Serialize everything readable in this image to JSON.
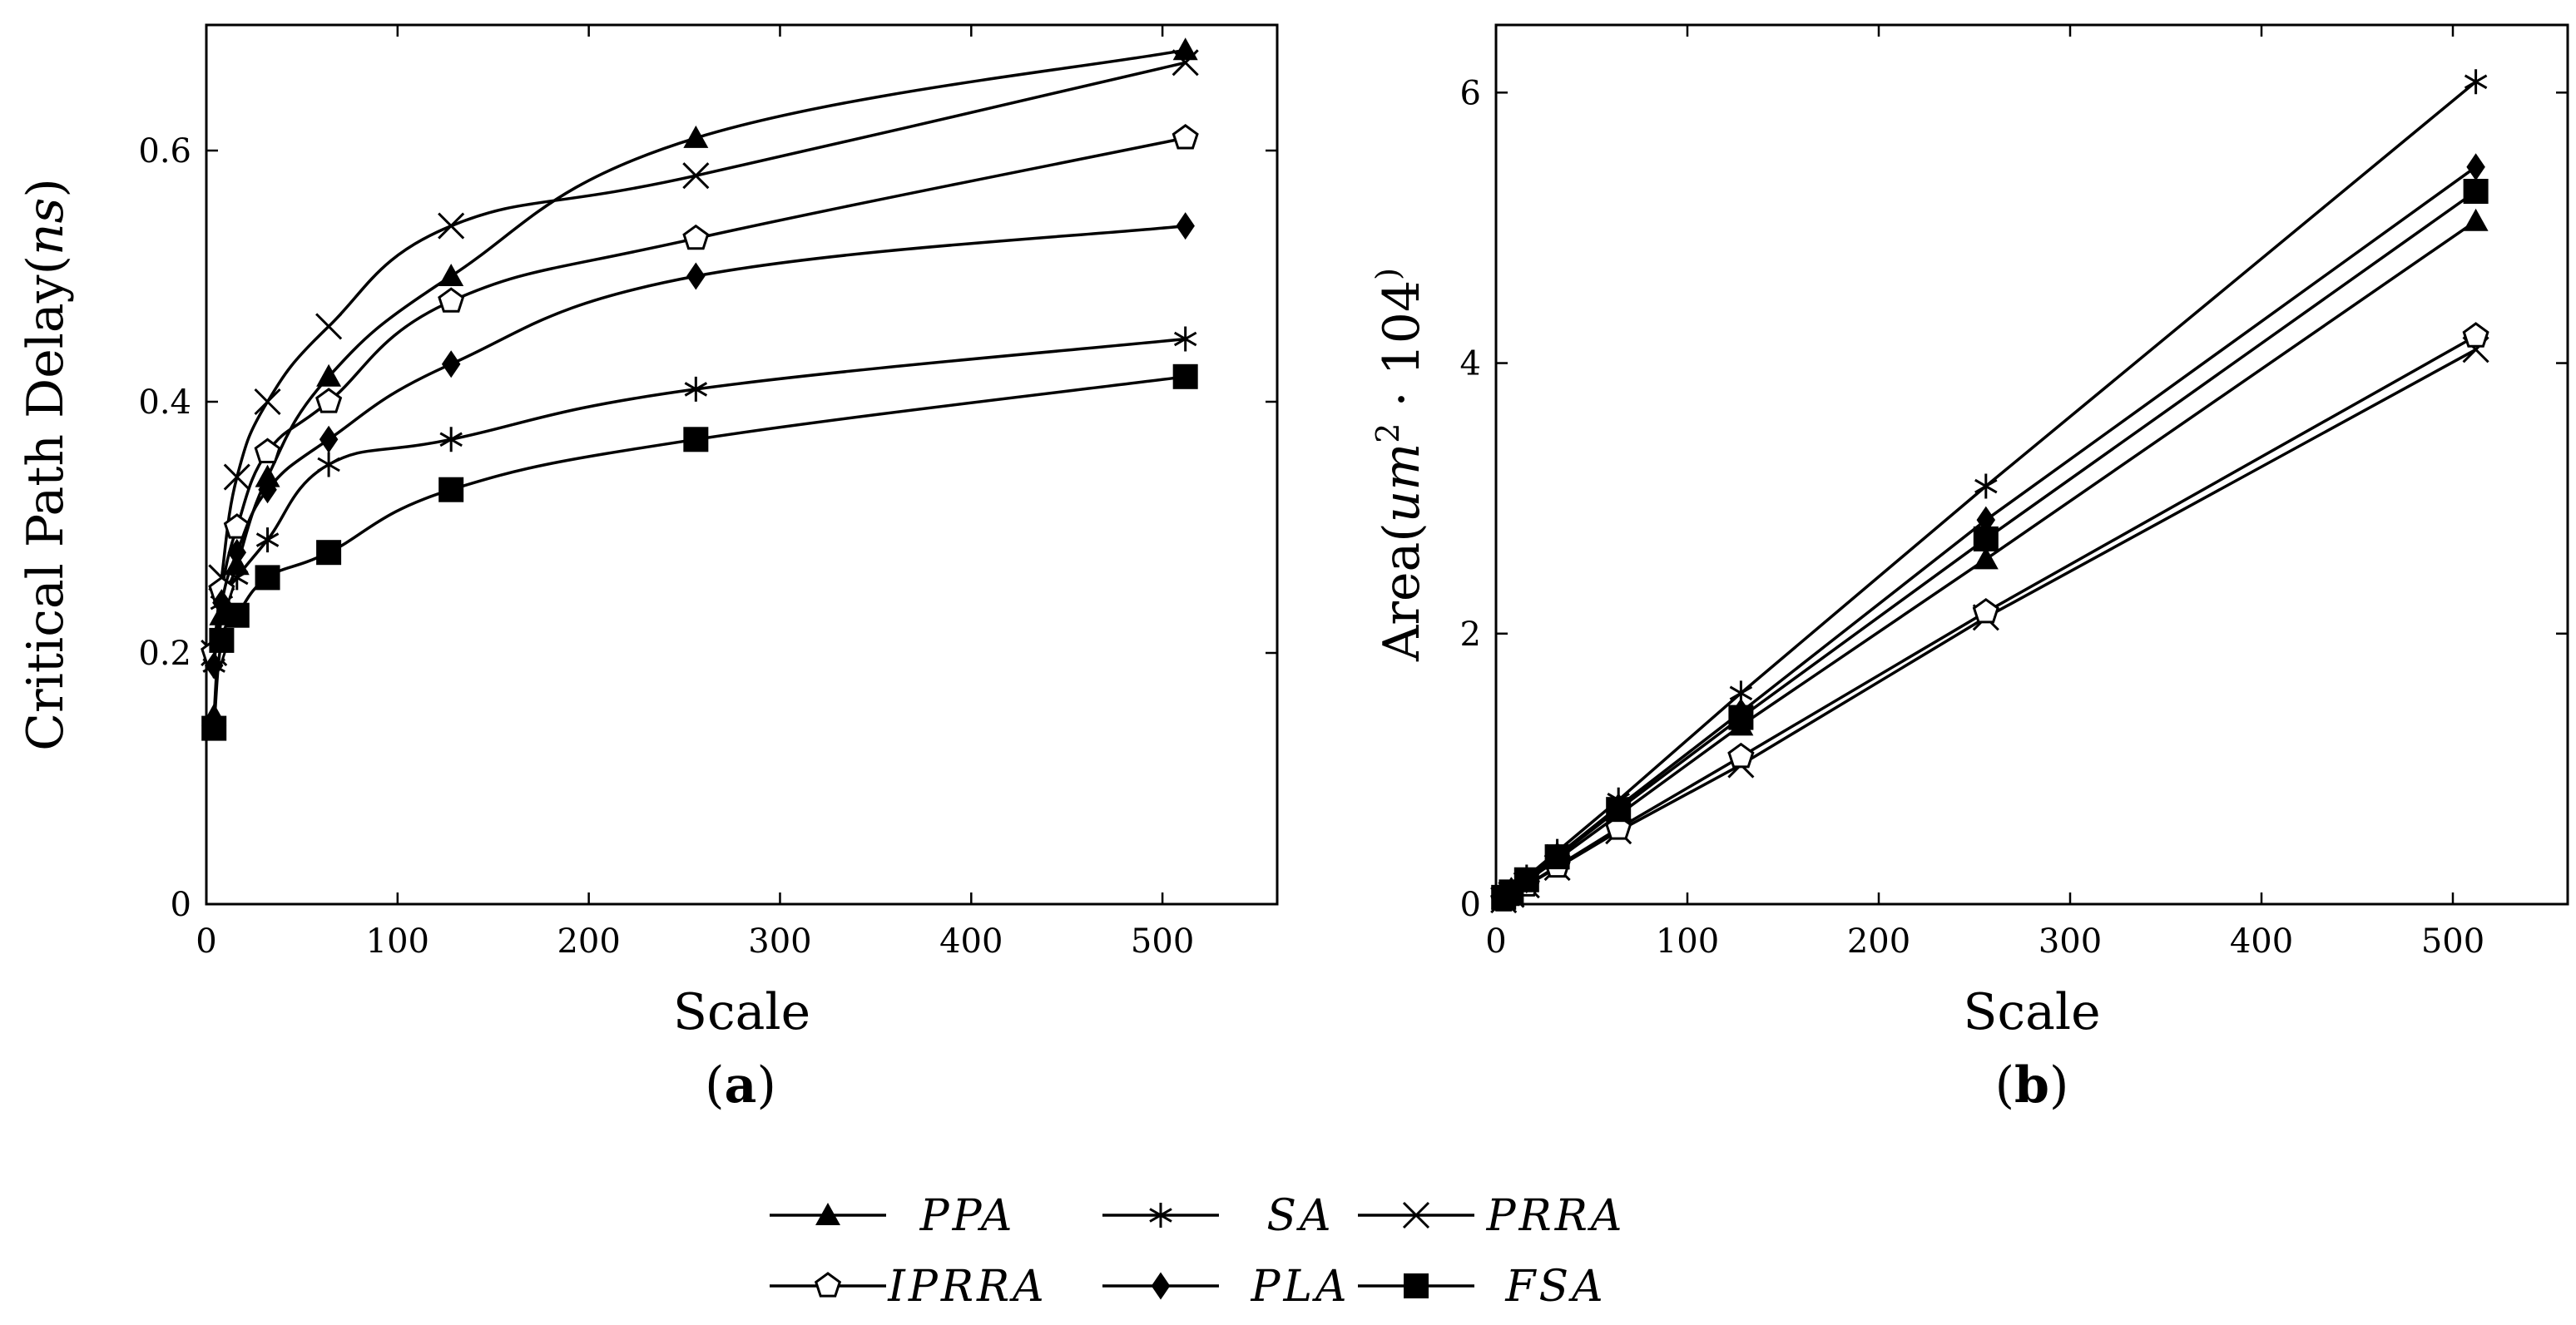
{
  "chart_data": [
    {
      "type": "line",
      "panel_label": "(a)",
      "xlabel": "Scale",
      "ylabel": "Critical Path Delay(ns)",
      "xlim": [
        0,
        560
      ],
      "ylim": [
        0,
        0.7
      ],
      "xticks": [
        "0",
        "100",
        "200",
        "300",
        "400",
        "500"
      ],
      "yticks": [
        "0",
        "0.2",
        "0.4",
        "0.6"
      ],
      "x": [
        4,
        8,
        16,
        32,
        64,
        128,
        256,
        512
      ],
      "series": [
        {
          "name": "PPA",
          "marker": "triangle",
          "values": [
            0.15,
            0.23,
            0.27,
            0.34,
            0.42,
            0.5,
            0.61,
            0.68
          ]
        },
        {
          "name": "SA",
          "marker": "star",
          "values": [
            0.19,
            0.24,
            0.26,
            0.29,
            0.35,
            0.37,
            0.41,
            0.45
          ]
        },
        {
          "name": "PRRA",
          "marker": "cross",
          "values": [
            0.2,
            0.26,
            0.34,
            0.4,
            0.46,
            0.54,
            0.58,
            0.67
          ]
        },
        {
          "name": "IPRRA",
          "marker": "pentagon",
          "values": [
            0.2,
            0.25,
            0.3,
            0.36,
            0.4,
            0.48,
            0.53,
            0.61
          ]
        },
        {
          "name": "PLA",
          "marker": "diamond",
          "values": [
            0.19,
            0.24,
            0.28,
            0.33,
            0.37,
            0.43,
            0.5,
            0.54
          ]
        },
        {
          "name": "FSA",
          "marker": "square",
          "values": [
            0.14,
            0.21,
            0.23,
            0.26,
            0.28,
            0.33,
            0.37,
            0.42
          ]
        }
      ]
    },
    {
      "type": "line",
      "panel_label": "(b)",
      "xlabel": "Scale",
      "ylabel": "Area(um2 · 104)",
      "xlim": [
        0,
        560
      ],
      "ylim": [
        0,
        6.5
      ],
      "xticks": [
        "0",
        "100",
        "200",
        "300",
        "400",
        "500"
      ],
      "yticks": [
        "0",
        "2",
        "4",
        "6"
      ],
      "x": [
        4,
        8,
        16,
        32,
        64,
        128,
        256,
        512
      ],
      "series": [
        {
          "name": "PPA",
          "marker": "triangle",
          "values": [
            0.04,
            0.09,
            0.17,
            0.33,
            0.66,
            1.32,
            2.55,
            5.05
          ]
        },
        {
          "name": "SA",
          "marker": "star",
          "values": [
            0.05,
            0.1,
            0.2,
            0.39,
            0.77,
            1.56,
            3.09,
            6.08
          ]
        },
        {
          "name": "PRRA",
          "marker": "cross",
          "values": [
            0.03,
            0.07,
            0.14,
            0.27,
            0.54,
            1.03,
            2.12,
            4.1
          ]
        },
        {
          "name": "IPRRA",
          "marker": "pentagon",
          "values": [
            0.03,
            0.07,
            0.14,
            0.28,
            0.56,
            1.09,
            2.16,
            4.2
          ]
        },
        {
          "name": "PLA",
          "marker": "diamond",
          "values": [
            0.05,
            0.1,
            0.18,
            0.36,
            0.72,
            1.42,
            2.84,
            5.45
          ]
        },
        {
          "name": "FSA",
          "marker": "square",
          "values": [
            0.05,
            0.09,
            0.18,
            0.35,
            0.7,
            1.38,
            2.7,
            5.27
          ]
        }
      ]
    }
  ]
}
